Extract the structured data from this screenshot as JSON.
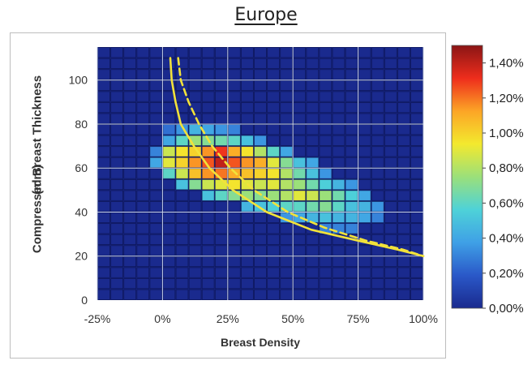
{
  "chart_data": {
    "type": "heatmap",
    "title": "Europe",
    "xlabel": "Breast Density",
    "ylabel_lines": [
      "Compressed Breast Thickness",
      "(mm)"
    ],
    "x_tick_labels": [
      "-25%",
      "0%",
      "25%",
      "50%",
      "75%",
      "100%"
    ],
    "x_tick_values": [
      -25,
      0,
      25,
      50,
      75,
      100
    ],
    "y_tick_labels": [
      "0",
      "20",
      "40",
      "60",
      "80",
      "100"
    ],
    "y_tick_values": [
      0,
      20,
      40,
      60,
      80,
      100
    ],
    "xlim": [
      -25,
      100
    ],
    "ylim": [
      0,
      115
    ],
    "grid": true,
    "colorbar": {
      "tick_labels": [
        "0,00%",
        "0,20%",
        "0,40%",
        "0,60%",
        "0,80%",
        "1,00%",
        "1,20%",
        "1,40%"
      ],
      "tick_values": [
        0,
        0.2,
        0.4,
        0.6,
        0.8,
        1.0,
        1.2,
        1.4
      ],
      "range": [
        0,
        1.5
      ],
      "colors": [
        "#1a2a8e",
        "#2a58c8",
        "#3fa0e6",
        "#4ed2d8",
        "#9be07a",
        "#f3e92e",
        "#fca526",
        "#ee2d1c",
        "#8b1515"
      ]
    },
    "cell_units": "percent of cases",
    "cell_x_step": 5,
    "cell_y_step": 5,
    "cell_x_start": -25,
    "cell_y_start": 0,
    "cells": [
      {
        "x": 0,
        "y": 75,
        "v": 0.25
      },
      {
        "x": 5,
        "y": 75,
        "v": 0.35
      },
      {
        "x": 10,
        "y": 75,
        "v": 0.45
      },
      {
        "x": 15,
        "y": 75,
        "v": 0.4
      },
      {
        "x": 20,
        "y": 75,
        "v": 0.35
      },
      {
        "x": 25,
        "y": 75,
        "v": 0.3
      },
      {
        "x": 0,
        "y": 70,
        "v": 0.4
      },
      {
        "x": 5,
        "y": 70,
        "v": 0.6
      },
      {
        "x": 10,
        "y": 70,
        "v": 0.75
      },
      {
        "x": 15,
        "y": 70,
        "v": 0.7
      },
      {
        "x": 20,
        "y": 70,
        "v": 0.65
      },
      {
        "x": 25,
        "y": 70,
        "v": 0.6
      },
      {
        "x": 30,
        "y": 70,
        "v": 0.5
      },
      {
        "x": 35,
        "y": 70,
        "v": 0.35
      },
      {
        "x": -5,
        "y": 65,
        "v": 0.3
      },
      {
        "x": 0,
        "y": 65,
        "v": 0.85
      },
      {
        "x": 5,
        "y": 65,
        "v": 0.95
      },
      {
        "x": 10,
        "y": 65,
        "v": 1.0
      },
      {
        "x": 15,
        "y": 65,
        "v": 1.15
      },
      {
        "x": 20,
        "y": 65,
        "v": 1.3
      },
      {
        "x": 25,
        "y": 65,
        "v": 1.1
      },
      {
        "x": 30,
        "y": 65,
        "v": 0.95
      },
      {
        "x": 35,
        "y": 65,
        "v": 0.8
      },
      {
        "x": 40,
        "y": 65,
        "v": 0.6
      },
      {
        "x": 45,
        "y": 65,
        "v": 0.4
      },
      {
        "x": -5,
        "y": 60,
        "v": 0.4
      },
      {
        "x": 0,
        "y": 60,
        "v": 0.9
      },
      {
        "x": 5,
        "y": 60,
        "v": 1.0
      },
      {
        "x": 10,
        "y": 60,
        "v": 1.15
      },
      {
        "x": 15,
        "y": 60,
        "v": 1.25
      },
      {
        "x": 20,
        "y": 60,
        "v": 1.4
      },
      {
        "x": 25,
        "y": 60,
        "v": 1.25
      },
      {
        "x": 30,
        "y": 60,
        "v": 1.15
      },
      {
        "x": 35,
        "y": 60,
        "v": 1.1
      },
      {
        "x": 40,
        "y": 60,
        "v": 0.9
      },
      {
        "x": 45,
        "y": 60,
        "v": 0.7
      },
      {
        "x": 50,
        "y": 60,
        "v": 0.5
      },
      {
        "x": 55,
        "y": 60,
        "v": 0.4
      },
      {
        "x": 0,
        "y": 55,
        "v": 0.6
      },
      {
        "x": 5,
        "y": 55,
        "v": 0.85
      },
      {
        "x": 10,
        "y": 55,
        "v": 1.05
      },
      {
        "x": 15,
        "y": 55,
        "v": 1.15
      },
      {
        "x": 20,
        "y": 55,
        "v": 1.2
      },
      {
        "x": 25,
        "y": 55,
        "v": 1.1
      },
      {
        "x": 30,
        "y": 55,
        "v": 1.05
      },
      {
        "x": 35,
        "y": 55,
        "v": 1.0
      },
      {
        "x": 40,
        "y": 55,
        "v": 0.95
      },
      {
        "x": 45,
        "y": 55,
        "v": 0.8
      },
      {
        "x": 50,
        "y": 55,
        "v": 0.65
      },
      {
        "x": 55,
        "y": 55,
        "v": 0.5
      },
      {
        "x": 60,
        "y": 55,
        "v": 0.35
      },
      {
        "x": 5,
        "y": 50,
        "v": 0.5
      },
      {
        "x": 10,
        "y": 50,
        "v": 0.7
      },
      {
        "x": 15,
        "y": 50,
        "v": 0.85
      },
      {
        "x": 20,
        "y": 50,
        "v": 0.9
      },
      {
        "x": 25,
        "y": 50,
        "v": 0.95
      },
      {
        "x": 30,
        "y": 50,
        "v": 0.9
      },
      {
        "x": 35,
        "y": 50,
        "v": 0.85
      },
      {
        "x": 40,
        "y": 50,
        "v": 0.9
      },
      {
        "x": 45,
        "y": 50,
        "v": 0.8
      },
      {
        "x": 50,
        "y": 50,
        "v": 0.75
      },
      {
        "x": 55,
        "y": 50,
        "v": 0.65
      },
      {
        "x": 60,
        "y": 50,
        "v": 0.55
      },
      {
        "x": 65,
        "y": 50,
        "v": 0.45
      },
      {
        "x": 70,
        "y": 50,
        "v": 0.35
      },
      {
        "x": 15,
        "y": 45,
        "v": 0.5
      },
      {
        "x": 20,
        "y": 45,
        "v": 0.6
      },
      {
        "x": 25,
        "y": 45,
        "v": 0.7
      },
      {
        "x": 30,
        "y": 45,
        "v": 0.75
      },
      {
        "x": 35,
        "y": 45,
        "v": 0.7
      },
      {
        "x": 40,
        "y": 45,
        "v": 0.75
      },
      {
        "x": 45,
        "y": 45,
        "v": 0.8
      },
      {
        "x": 50,
        "y": 45,
        "v": 0.9
      },
      {
        "x": 55,
        "y": 45,
        "v": 0.85
      },
      {
        "x": 60,
        "y": 45,
        "v": 0.75
      },
      {
        "x": 65,
        "y": 45,
        "v": 0.65
      },
      {
        "x": 70,
        "y": 45,
        "v": 0.55
      },
      {
        "x": 75,
        "y": 45,
        "v": 0.4
      },
      {
        "x": 30,
        "y": 40,
        "v": 0.45
      },
      {
        "x": 35,
        "y": 40,
        "v": 0.5
      },
      {
        "x": 40,
        "y": 40,
        "v": 0.55
      },
      {
        "x": 45,
        "y": 40,
        "v": 0.6
      },
      {
        "x": 50,
        "y": 40,
        "v": 0.6
      },
      {
        "x": 55,
        "y": 40,
        "v": 0.65
      },
      {
        "x": 60,
        "y": 40,
        "v": 0.7
      },
      {
        "x": 65,
        "y": 40,
        "v": 0.6
      },
      {
        "x": 70,
        "y": 40,
        "v": 0.5
      },
      {
        "x": 75,
        "y": 40,
        "v": 0.45
      },
      {
        "x": 80,
        "y": 40,
        "v": 0.35
      },
      {
        "x": 45,
        "y": 35,
        "v": 0.35
      },
      {
        "x": 50,
        "y": 35,
        "v": 0.4
      },
      {
        "x": 55,
        "y": 35,
        "v": 0.45
      },
      {
        "x": 60,
        "y": 35,
        "v": 0.5
      },
      {
        "x": 65,
        "y": 35,
        "v": 0.45
      },
      {
        "x": 70,
        "y": 35,
        "v": 0.45
      },
      {
        "x": 75,
        "y": 35,
        "v": 0.4
      },
      {
        "x": 80,
        "y": 35,
        "v": 0.3
      },
      {
        "x": 60,
        "y": 30,
        "v": 0.3
      },
      {
        "x": 65,
        "y": 30,
        "v": 0.3
      },
      {
        "x": 70,
        "y": 30,
        "v": 0.3
      }
    ],
    "curves": [
      {
        "style": "solid",
        "color": "#f2e23a",
        "points": [
          [
            3,
            110
          ],
          [
            3.5,
            100
          ],
          [
            5,
            90
          ],
          [
            7,
            80
          ],
          [
            12,
            70
          ],
          [
            18,
            60
          ],
          [
            27,
            50
          ],
          [
            40,
            40
          ],
          [
            57,
            32
          ],
          [
            75,
            27
          ],
          [
            90,
            23
          ],
          [
            100,
            20
          ]
        ]
      },
      {
        "style": "dashed",
        "color": "#f2e23a",
        "points": [
          [
            6,
            110
          ],
          [
            7,
            100
          ],
          [
            10,
            90
          ],
          [
            14,
            80
          ],
          [
            19,
            70
          ],
          [
            26,
            60
          ],
          [
            35,
            50
          ],
          [
            48,
            40
          ],
          [
            62,
            33
          ],
          [
            78,
            27
          ],
          [
            92,
            23
          ],
          [
            100,
            20
          ]
        ]
      }
    ]
  }
}
